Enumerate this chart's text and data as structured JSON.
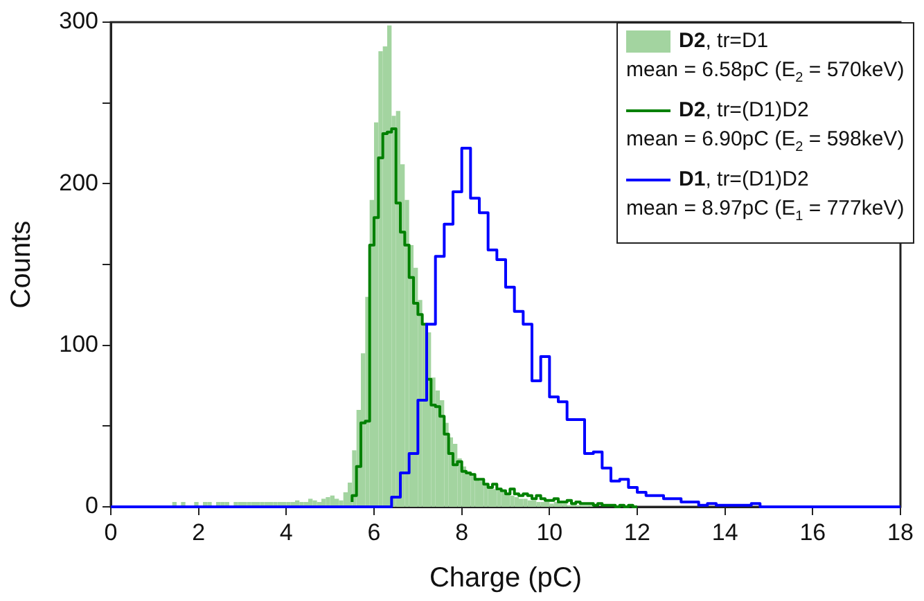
{
  "chart_data": {
    "type": "histogram",
    "xlabel": "Charge (pC)",
    "ylabel": "Counts",
    "xlim": [
      0,
      18
    ],
    "xticks": [
      0,
      2,
      4,
      6,
      8,
      10,
      12,
      14,
      16,
      18
    ],
    "ylim": [
      0,
      300
    ],
    "yticks": [
      0,
      {
        "value": 50,
        "label": null
      },
      100,
      {
        "value": 150,
        "label": null
      },
      200,
      {
        "value": 250,
        "label": null
      },
      300
    ],
    "grid": false,
    "legend": "top right",
    "annotations": [
      "mean = 6.58pC (E$_{2}$ = 570keV)",
      "mean = 6.90pC (E$_{2}$ = 598keV)",
      "mean = 8.97pC (E$_{1}$ = 777keV)"
    ],
    "bins": [
      1.4,
      1.5,
      1.6,
      1.7,
      1.8,
      1.9,
      2,
      2.1,
      2.2,
      2.3,
      2.4,
      2.5,
      2.6,
      2.7,
      2.8,
      2.9,
      3,
      3.1,
      3.2,
      3.3,
      3.4,
      3.5,
      3.6,
      3.7,
      3.8,
      3.9,
      4,
      4.1,
      4.2,
      4.3,
      4.4,
      4.5,
      4.6,
      4.7,
      4.8,
      4.9,
      5,
      5.1,
      5.2,
      5.3,
      5.4,
      5.5,
      5.6,
      5.7,
      5.8,
      5.9,
      6,
      6.1,
      6.2,
      6.3,
      6.4,
      6.5,
      6.6,
      6.7,
      6.8,
      6.9,
      7,
      7.1,
      7.2,
      7.3,
      7.4,
      7.5,
      7.6,
      7.7,
      7.8,
      7.9,
      8,
      8.1,
      8.2,
      8.3,
      8.4,
      8.5,
      8.6,
      8.7,
      8.8,
      8.9,
      9,
      9.1,
      9.2,
      9.3,
      9.4,
      9.5,
      9.6,
      9.7,
      9.8,
      9.9,
      10,
      10.1,
      10.2,
      10.3,
      10.4,
      10.5,
      10.6,
      10.7,
      10.8,
      10.9,
      11
    ],
    "series": [
      {
        "name": "D2, tr=D1",
        "color": "#a3d4a0",
        "values": [
          3,
          0,
          3,
          0,
          0,
          3,
          0,
          3,
          3,
          0,
          3,
          3,
          3,
          0,
          3,
          3,
          3,
          3,
          3,
          3,
          3,
          3,
          3,
          3,
          3,
          3,
          3,
          3,
          4,
          3,
          3,
          5,
          4,
          3,
          5,
          6,
          7,
          5,
          4,
          9,
          15,
          35,
          60,
          95,
          130,
          190,
          238,
          282,
          285,
          298,
          242,
          245,
          212,
          190,
          162,
          148,
          128,
          113,
          108,
          80,
          72,
          66,
          52,
          43,
          39,
          30,
          25,
          21,
          19,
          17,
          16,
          14,
          13,
          11,
          10,
          9,
          8,
          7,
          6,
          5,
          5,
          4,
          4,
          3,
          3,
          3,
          2,
          3,
          2,
          2,
          1,
          2,
          1,
          1,
          1,
          1
        ]
      },
      {
        "type": "step",
        "name": "D2, tr=(D1)D2",
        "color": "#008000",
        "x": [
          5.5,
          5.6,
          5.7,
          5.8,
          5.9,
          6,
          6.1,
          6.2,
          6.3,
          6.4,
          6.5,
          6.6,
          6.7,
          6.8,
          6.9,
          7,
          7.1,
          7.2,
          7.3,
          7.4,
          7.5,
          7.6,
          7.7,
          7.8,
          7.9,
          8,
          8.1,
          8.2,
          8.3,
          8.4,
          8.5,
          8.6,
          8.7,
          8.8,
          8.9,
          9,
          9.1,
          9.2,
          9.3,
          9.4,
          9.5,
          9.6,
          9.7,
          9.8,
          9.9,
          10,
          10.1,
          10.2,
          10.3,
          10.4,
          10.5,
          10.6,
          10.7,
          10.8,
          10.9,
          11,
          11.1,
          11.2,
          11.3,
          11.4,
          11.5,
          11.6,
          11.7,
          11.8,
          11.9,
          12
        ],
        "values": [
          3,
          7,
          25,
          52,
          53,
          162,
          179,
          216,
          231,
          232,
          234,
          188,
          170,
          162,
          142,
          126,
          119,
          113,
          79,
          63,
          62,
          56,
          45,
          33,
          26,
          28,
          22,
          21,
          20,
          17,
          17,
          14,
          12,
          14,
          11,
          10,
          8,
          11,
          8,
          7,
          8,
          7,
          5,
          7,
          5,
          4,
          4,
          5,
          3,
          3,
          4,
          2,
          3,
          2,
          2,
          2,
          1,
          2,
          1,
          1,
          1,
          0,
          1,
          0,
          1,
          0
        ]
      },
      {
        "type": "step",
        "name": "D1, tr=(D1)D2",
        "color": "#0000ff",
        "x": [
          0,
          0.2,
          0.4,
          0.6,
          0.8,
          1,
          1.2,
          1.4,
          1.6,
          1.8,
          2,
          2.2,
          2.4,
          2.6,
          2.8,
          3,
          3.2,
          3.4,
          3.6,
          3.8,
          4,
          4.2,
          4.4,
          4.6,
          4.8,
          5,
          5.2,
          5.4,
          5.6,
          5.8,
          6,
          6.2,
          6.4,
          6.6,
          6.8,
          7,
          7.2,
          7.4,
          7.6,
          7.8,
          8,
          8.2,
          8.4,
          8.6,
          8.8,
          9,
          9.2,
          9.4,
          9.6,
          9.8,
          10,
          10.2,
          10.4,
          10.6,
          10.8,
          11,
          11.2,
          11.4,
          11.6,
          11.8,
          12,
          12.2,
          12.4,
          12.6,
          12.8,
          13,
          13.2,
          13.4,
          13.6,
          13.8,
          14,
          14.2,
          14.4,
          14.6,
          14.8,
          15,
          15.2,
          15.4,
          15.6,
          15.8,
          16,
          16.2,
          16.4,
          16.6,
          16.8,
          17,
          17.2,
          17.4,
          17.6,
          17.8,
          18
        ],
        "values": [
          0,
          0,
          0,
          0,
          0,
          0,
          0,
          0,
          0,
          0,
          0,
          0,
          0,
          0,
          0,
          0,
          0,
          0,
          0,
          0,
          0,
          0,
          0,
          0,
          0,
          0,
          0,
          0,
          0,
          0,
          0,
          0,
          0,
          6,
          21,
          33,
          66,
          113,
          155,
          175,
          195,
          222,
          191,
          182,
          159,
          153,
          136,
          121,
          113,
          78,
          93,
          68,
          65,
          54,
          54,
          33,
          34,
          24,
          16,
          17,
          12,
          9,
          7,
          7,
          5,
          5,
          3,
          3,
          1,
          2,
          1,
          1,
          1,
          1,
          2,
          0,
          0,
          0,
          0,
          0,
          0,
          0,
          0,
          0,
          0,
          0,
          0,
          0,
          0,
          0,
          0
        ]
      }
    ]
  }
}
